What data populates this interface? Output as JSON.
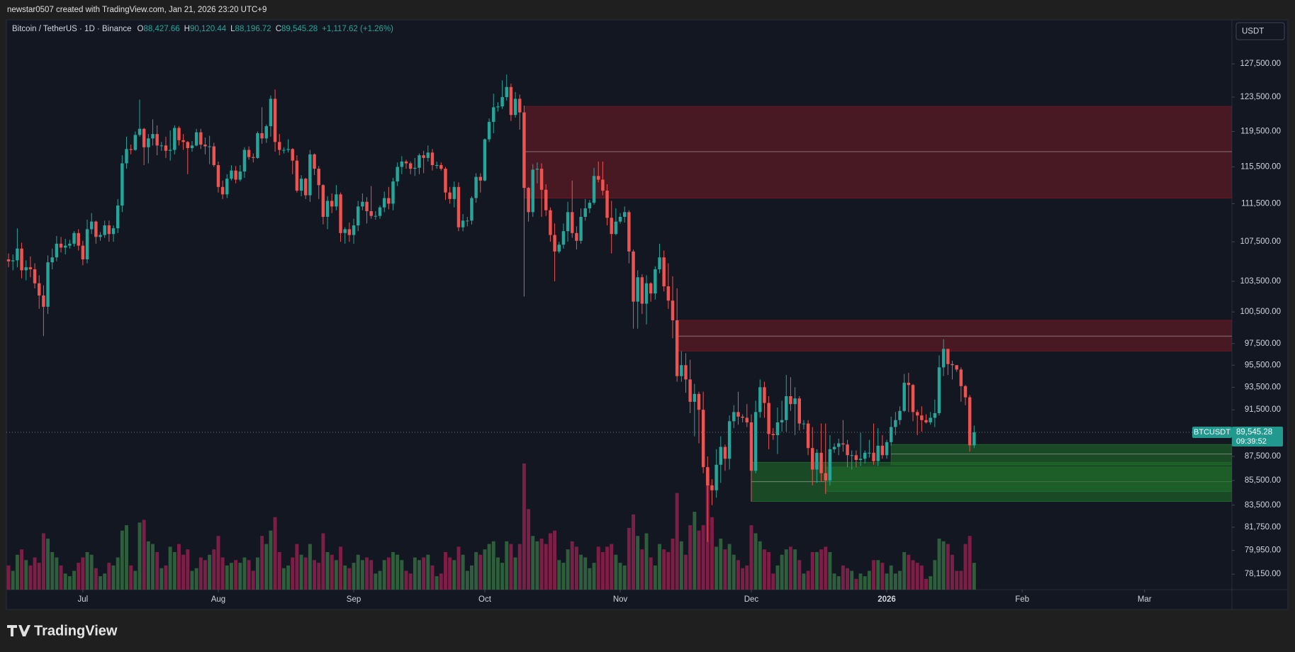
{
  "header": {
    "text": "newstar0507 created with TradingView.com, Jan 21, 2026 23:20 UTC+9"
  },
  "footer": {
    "brand": "TradingView"
  },
  "chart_data": {
    "type": "candlestick",
    "currency_button": "USDT",
    "legend": {
      "symbol": "Bitcoin / TetherUS · 1D · Binance",
      "fields": [
        {
          "key": "O",
          "value": "88,427.66"
        },
        {
          "key": "H",
          "value": "90,120.44"
        },
        {
          "key": "L",
          "value": "88,196.72"
        },
        {
          "key": "C",
          "value": "89,545.28"
        }
      ],
      "change": "+1,117.62 (+1.26%)"
    },
    "log_scale": true,
    "grid": false,
    "up_color": "#26a69a",
    "down_color": "#ef5350",
    "volume_up_color": "#2e5e3b",
    "volume_down_color": "#7d1e46",
    "xlim": [
      -0.5,
      280
    ],
    "xticks": [
      {
        "value": 17,
        "label": "Jul"
      },
      {
        "value": 48,
        "label": "Aug"
      },
      {
        "value": 79,
        "label": "Sep"
      },
      {
        "value": 109,
        "label": "Oct"
      },
      {
        "value": 140,
        "label": "Nov"
      },
      {
        "value": 170,
        "label": "Dec"
      },
      {
        "value": 201,
        "label": "2026"
      },
      {
        "value": 232,
        "label": "Feb"
      },
      {
        "value": 260,
        "label": "Mar"
      }
    ],
    "ylim": [
      77000,
      133000
    ],
    "yticks": [
      {
        "value": 127500,
        "label": "127,500.00"
      },
      {
        "value": 123500,
        "label": "123,500.00"
      },
      {
        "value": 119500,
        "label": "119,500.00"
      },
      {
        "value": 115500,
        "label": "115,500.00"
      },
      {
        "value": 111500,
        "label": "111,500.00"
      },
      {
        "value": 107500,
        "label": "107,500.00"
      },
      {
        "value": 103500,
        "label": "103,500.00"
      },
      {
        "value": 100500,
        "label": "100,500.00"
      },
      {
        "value": 97500,
        "label": "97,500.00"
      },
      {
        "value": 95500,
        "label": "95,500.00"
      },
      {
        "value": 93500,
        "label": "93,500.00"
      },
      {
        "value": 91500,
        "label": "91,500.00"
      },
      {
        "value": 87500,
        "label": "87,500.00"
      },
      {
        "value": 85500,
        "label": "85,500.00"
      },
      {
        "value": 83500,
        "label": "83,500.00"
      },
      {
        "value": 81750,
        "label": "81,750.00"
      },
      {
        "value": 79950,
        "label": "79,950.00"
      },
      {
        "value": 78150,
        "label": "78,150.00"
      }
    ],
    "last_price": {
      "value": 89545.28,
      "label": "89,545.28",
      "symbol": "BTCUSDT",
      "countdown": "09:39:52",
      "color": "#22998f"
    },
    "zones": [
      {
        "start": 118,
        "top": 122400,
        "bottom": 112100,
        "mid": 117200,
        "color": "#6e1a24"
      },
      {
        "start": 153,
        "top": 99700,
        "bottom": 96800,
        "mid": 98200,
        "color": "#6e1a24"
      },
      {
        "start": 202,
        "top": 88500,
        "bottom": 86800,
        "mid": 87700,
        "color": "#1f6a2a"
      },
      {
        "start": 170,
        "top": 87000,
        "bottom": 83800,
        "mid": 85400,
        "color": "#1f6a2a"
      },
      {
        "start": 187,
        "top": 86600,
        "bottom": 84600,
        "color": "#1f6a2a"
      }
    ],
    "open": [
      105700,
      105500,
      105600,
      106800,
      104600,
      104900,
      104700,
      103300,
      102100,
      101000,
      105400,
      105900,
      107300,
      106900,
      107100,
      107300,
      108400,
      107100,
      105700,
      108800,
      109600,
      108000,
      108200,
      109200,
      108300,
      108900,
      111300,
      115900,
      117500,
      117400,
      119100,
      119800,
      117700,
      118700,
      119200,
      117900,
      117900,
      117300,
      117400,
      119900,
      118500,
      118300,
      117600,
      117900,
      119400,
      118000,
      117800,
      117800,
      115700,
      113300,
      112500,
      114200,
      115100,
      114100,
      115000,
      117400,
      116600,
      116500,
      119300,
      118700,
      120100,
      123300,
      118300,
      117400,
      117400,
      117500,
      116200,
      112900,
      114200,
      112400,
      116900,
      115300,
      113500,
      110100,
      111800,
      111200,
      112500,
      108400,
      108800,
      108200,
      109200,
      111200,
      111700,
      110700,
      110200,
      110200,
      111100,
      112100,
      111500,
      113900,
      115500,
      116100,
      115900,
      115300,
      115400,
      116800,
      116500,
      117100,
      115700,
      115700,
      115300,
      112700,
      112000,
      113300,
      109000,
      109700,
      109700,
      112100,
      114400,
      114000,
      118600,
      120600,
      122300,
      122400,
      123500,
      124700,
      121400,
      123300,
      121700,
      113200,
      110600,
      115200,
      115300,
      113000,
      110800,
      108200,
      106500,
      107200,
      108600,
      110600,
      108400,
      107600,
      110100,
      111000,
      111600,
      114500,
      114100,
      112900,
      110000,
      108300,
      109600,
      110100,
      110600,
      106500,
      101500,
      103900,
      101300,
      103300,
      102300,
      104700,
      105900,
      103000,
      101600,
      99700,
      94500,
      95500,
      94200,
      92200,
      92900,
      91500,
      86600,
      85100,
      84700,
      86800,
      88300,
      87300,
      90500,
      91300,
      90900,
      90800,
      90400,
      86300,
      91300,
      93500,
      92100,
      89400,
      89300,
      90400,
      90600,
      92700,
      92000,
      92500,
      90300,
      90300,
      88200,
      86400,
      87800,
      86100,
      85500,
      88100,
      88300,
      88600,
      88500,
      87600,
      87600,
      87200,
      87300,
      87800,
      87800,
      87100,
      88400,
      87600,
      88700,
      90000,
      90600,
      91400,
      93900,
      93700,
      91300,
      91000,
      90600,
      90400,
      90800,
      91200,
      95300,
      97000,
      95600,
      95500,
      95100,
      93600,
      92600,
      88427.66
    ],
    "high": [
      106300,
      106200,
      108900,
      107400,
      105600,
      106000,
      105300,
      104100,
      103100,
      106100,
      106800,
      108100,
      108000,
      107800,
      107700,
      108600,
      108800,
      107600,
      109800,
      110500,
      109700,
      108500,
      109700,
      109700,
      109200,
      112000,
      116800,
      118900,
      118000,
      119500,
      123200,
      119900,
      119200,
      120900,
      120200,
      118300,
      118900,
      119600,
      120200,
      120100,
      119200,
      118400,
      118400,
      119800,
      119800,
      118800,
      119000,
      118200,
      116100,
      114000,
      114700,
      115700,
      115600,
      115700,
      117700,
      117800,
      117000,
      119500,
      122300,
      120300,
      123700,
      124400,
      119200,
      117700,
      118600,
      117600,
      116800,
      114600,
      114300,
      117400,
      117000,
      115600,
      113600,
      112300,
      112600,
      113500,
      112700,
      109000,
      109500,
      109900,
      111800,
      112600,
      112200,
      113400,
      110700,
      111300,
      112800,
      113300,
      114300,
      116000,
      116700,
      116300,
      116100,
      116500,
      117000,
      117300,
      117900,
      117500,
      116100,
      116000,
      115500,
      113300,
      113900,
      113800,
      110400,
      110100,
      112300,
      114800,
      114800,
      118700,
      121000,
      123900,
      122900,
      125500,
      126200,
      125100,
      124100,
      123800,
      122500,
      113300,
      115800,
      116000,
      115900,
      113600,
      111100,
      109400,
      107500,
      109400,
      111700,
      114000,
      109100,
      111000,
      112000,
      111900,
      115400,
      116100,
      116100,
      113600,
      111800,
      111000,
      110500,
      111200,
      110800,
      106700,
      104600,
      104200,
      104100,
      103400,
      105000,
      107300,
      106600,
      105300,
      104000,
      102800,
      96800,
      96600,
      96000,
      93800,
      93100,
      93100,
      87500,
      85600,
      88100,
      89200,
      88500,
      91000,
      91900,
      93100,
      91100,
      92000,
      91100,
      92300,
      94200,
      94000,
      92700,
      89900,
      91700,
      92300,
      94600,
      94400,
      93500,
      92700,
      90600,
      90600,
      90000,
      88100,
      90300,
      90300,
      89300,
      88600,
      89000,
      90600,
      88900,
      88000,
      88000,
      89500,
      88000,
      88900,
      90300,
      89900,
      89300,
      88900,
      90900,
      91300,
      91800,
      94700,
      94800,
      93800,
      91500,
      91800,
      91100,
      91300,
      92400,
      96400,
      97900,
      97000,
      95900,
      95500,
      95300,
      93700,
      92800,
      90120.44
    ],
    "low": [
      104900,
      104600,
      104900,
      103800,
      103600,
      103900,
      102800,
      100800,
      98200,
      100300,
      104700,
      105500,
      106400,
      106200,
      106800,
      107000,
      106600,
      105100,
      105300,
      108300,
      107300,
      107600,
      107900,
      107500,
      107500,
      108400,
      110600,
      115300,
      116900,
      117300,
      118900,
      115700,
      115900,
      117900,
      116800,
      117300,
      116500,
      116200,
      116900,
      117900,
      117400,
      114700,
      117200,
      117800,
      117500,
      116900,
      115800,
      115500,
      112700,
      112000,
      112100,
      114000,
      113700,
      113900,
      114300,
      116300,
      116000,
      116400,
      118100,
      118200,
      118900,
      117200,
      116800,
      117000,
      117100,
      114700,
      112700,
      112300,
      112000,
      111700,
      114600,
      112000,
      109300,
      108800,
      110500,
      110800,
      107500,
      107300,
      107500,
      107300,
      108600,
      110800,
      109400,
      109900,
      109800,
      109900,
      110600,
      110900,
      110800,
      113400,
      114700,
      115300,
      114700,
      114500,
      114700,
      114800,
      116100,
      115100,
      115300,
      115100,
      111900,
      111500,
      111100,
      108600,
      108600,
      109100,
      109300,
      111600,
      112700,
      113900,
      118300,
      119300,
      121800,
      122100,
      123100,
      120700,
      121100,
      119700,
      102000,
      109600,
      110100,
      113700,
      110100,
      110200,
      107500,
      103500,
      106300,
      106800,
      107500,
      107900,
      106700,
      107300,
      109700,
      110500,
      111400,
      113800,
      112400,
      109200,
      106300,
      108200,
      109400,
      109500,
      105300,
      98900,
      98900,
      100300,
      99300,
      101500,
      101700,
      104300,
      102500,
      100800,
      98000,
      94000,
      94000,
      93000,
      91200,
      89200,
      88600,
      86100,
      80600,
      83500,
      84100,
      85300,
      86300,
      86400,
      89900,
      90200,
      90400,
      90000,
      83800,
      86100,
      90800,
      90800,
      88100,
      88900,
      87700,
      89600,
      89600,
      91400,
      89300,
      89700,
      89800,
      87600,
      85100,
      85300,
      85400,
      84400,
      85100,
      87800,
      87600,
      87900,
      86600,
      86400,
      86600,
      86700,
      86900,
      87400,
      86800,
      86700,
      87300,
      87300,
      88400,
      89300,
      90200,
      91300,
      91300,
      90500,
      89300,
      89600,
      90300,
      90200,
      90000,
      91000,
      94500,
      94600,
      94200,
      94900,
      92200,
      91900,
      87900,
      88196.72
    ],
    "close": [
      105500,
      105600,
      106800,
      104600,
      104900,
      104700,
      103300,
      102100,
      101000,
      105400,
      105900,
      107300,
      106900,
      107100,
      107300,
      108400,
      107100,
      105700,
      108800,
      109600,
      108000,
      108200,
      109200,
      108300,
      108900,
      111300,
      115900,
      117500,
      117400,
      119100,
      119800,
      117700,
      118700,
      119200,
      117900,
      117900,
      117300,
      117400,
      119900,
      118500,
      118300,
      117600,
      117900,
      119400,
      118000,
      117800,
      117800,
      115700,
      113300,
      112500,
      114200,
      115100,
      114100,
      115000,
      117400,
      116600,
      116500,
      119300,
      118700,
      120100,
      123300,
      118300,
      117400,
      117400,
      117500,
      116200,
      112900,
      114200,
      112400,
      116900,
      115300,
      113500,
      110100,
      111800,
      111200,
      112500,
      108400,
      108800,
      108200,
      109200,
      111200,
      111700,
      110700,
      110200,
      110200,
      111100,
      112100,
      111500,
      113900,
      115500,
      116100,
      115900,
      115300,
      115400,
      116800,
      116500,
      117100,
      115700,
      115700,
      115300,
      112700,
      112000,
      113300,
      109000,
      109700,
      109700,
      112100,
      114400,
      114000,
      118600,
      120600,
      122300,
      122400,
      123500,
      124700,
      121400,
      123300,
      121700,
      113200,
      110600,
      115200,
      115300,
      113000,
      110800,
      108200,
      106500,
      107200,
      108600,
      110600,
      108400,
      107600,
      110100,
      111000,
      111600,
      114500,
      114100,
      112900,
      110000,
      108300,
      109600,
      110100,
      110600,
      106500,
      101500,
      103900,
      101300,
      103300,
      102300,
      104700,
      105900,
      103000,
      101600,
      99700,
      94500,
      95500,
      94200,
      92200,
      92900,
      91500,
      86600,
      85100,
      84700,
      86800,
      88300,
      87300,
      90500,
      91300,
      90900,
      90800,
      90400,
      86300,
      91300,
      93500,
      92100,
      89400,
      89300,
      90400,
      90600,
      92700,
      92000,
      92500,
      90300,
      90300,
      88200,
      86400,
      87800,
      86100,
      85500,
      88100,
      88300,
      88600,
      88500,
      87600,
      87600,
      87200,
      87300,
      87800,
      87800,
      87100,
      88400,
      87600,
      88700,
      90000,
      90600,
      91400,
      93900,
      93700,
      91300,
      91000,
      90600,
      90400,
      90800,
      91200,
      95300,
      97000,
      95600,
      95500,
      95100,
      93600,
      92600,
      88430,
      89545.28
    ],
    "volume": [
      9000,
      7000,
      13000,
      15000,
      11000,
      9000,
      12000,
      10000,
      21000,
      19000,
      14000,
      12000,
      9000,
      6000,
      5000,
      7000,
      10000,
      12000,
      14000,
      13000,
      8000,
      5000,
      6000,
      10000,
      9000,
      12000,
      22000,
      24000,
      9000,
      7000,
      25000,
      26000,
      18000,
      17000,
      14000,
      8000,
      9000,
      16000,
      14000,
      17000,
      13000,
      15000,
      7000,
      8000,
      12000,
      11000,
      13000,
      15000,
      20000,
      12000,
      9000,
      10000,
      11000,
      10000,
      12000,
      11000,
      7000,
      12000,
      20000,
      17000,
      22000,
      27000,
      14000,
      8000,
      9000,
      12000,
      17000,
      13000,
      12000,
      17000,
      11000,
      10000,
      21000,
      14000,
      13000,
      11000,
      16000,
      9000,
      8000,
      10000,
      13000,
      11000,
      12000,
      11000,
      6000,
      7000,
      11000,
      12000,
      14000,
      13000,
      11000,
      7000,
      6000,
      12000,
      11000,
      12000,
      13000,
      9000,
      5000,
      6000,
      14000,
      12000,
      11000,
      16000,
      13000,
      7000,
      9000,
      14000,
      13000,
      15000,
      17000,
      18000,
      12000,
      10000,
      18000,
      17000,
      12000,
      17000,
      47000,
      30000,
      20000,
      18000,
      19000,
      17000,
      21000,
      22000,
      11000,
      10000,
      15000,
      18000,
      16000,
      13000,
      12000,
      8000,
      10000,
      16000,
      14000,
      16000,
      17000,
      13000,
      10000,
      9000,
      23000,
      28000,
      20000,
      15000,
      21000,
      12000,
      9000,
      17000,
      15000,
      14000,
      19000,
      36000,
      18000,
      13000,
      24000,
      29000,
      22000,
      24000,
      45000,
      27000,
      16000,
      19000,
      15000,
      17000,
      13000,
      11000,
      8000,
      9000,
      24000,
      21000,
      18000,
      15000,
      14000,
      6000,
      9000,
      13000,
      15000,
      16000,
      15000,
      11000,
      6000,
      7000,
      14000,
      14000,
      15000,
      16000,
      14000,
      6000,
      5000,
      9000,
      8000,
      7000,
      4000,
      6000,
      5000,
      7000,
      11000,
      11000,
      10000,
      6000,
      9000,
      6000,
      7000,
      14000,
      13000,
      11000,
      10000,
      9000,
      4000,
      5000,
      11000,
      19000,
      18000,
      17000,
      13000,
      7000,
      7000,
      17000,
      20000,
      10000
    ]
  }
}
